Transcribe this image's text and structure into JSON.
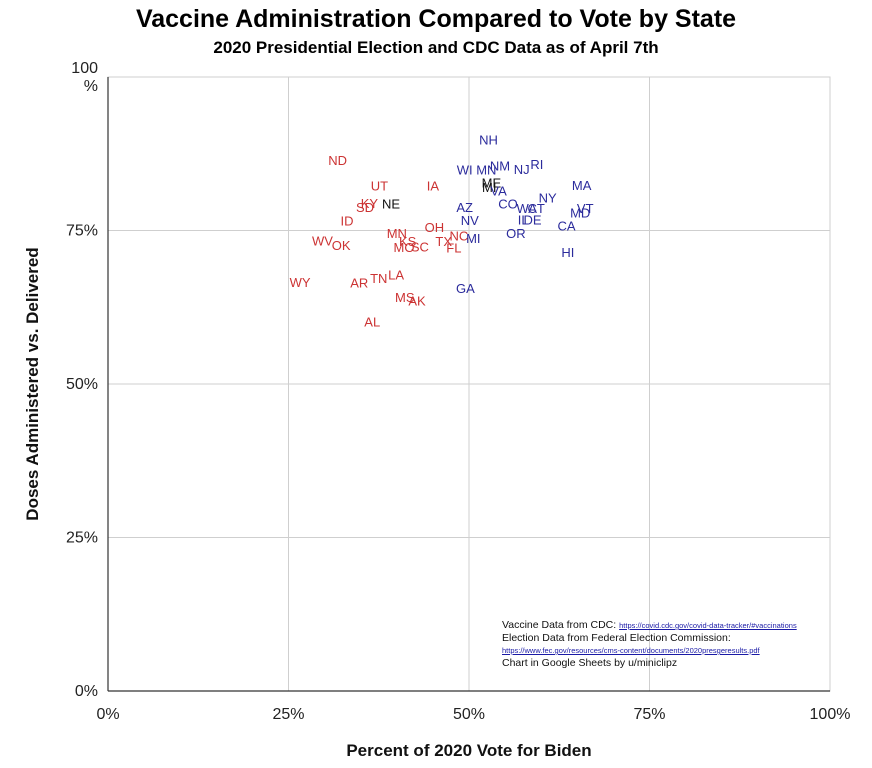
{
  "chart_data": {
    "type": "scatter",
    "title": "Vaccine Administration Compared to Vote by State",
    "subtitle": "2020 Presidential Election and CDC Data as of April 7th",
    "xlabel": "Percent of 2020 Vote for Biden",
    "ylabel": "Doses Administered vs. Delivered",
    "xlim": [
      0,
      100
    ],
    "ylim": [
      0,
      100
    ],
    "x_ticks": [
      "0%",
      "25%",
      "50%",
      "75%",
      "100%"
    ],
    "y_ticks": [
      "0%",
      "25%",
      "50%",
      "75%",
      "100\n%"
    ],
    "grid": true,
    "colors": {
      "republican": "#cc3333",
      "democrat": "#2b2b9c",
      "neutral": "#111111"
    },
    "points": [
      {
        "label": "ND",
        "x": 31.8,
        "y": 86.5,
        "party": "R"
      },
      {
        "label": "UT",
        "x": 37.6,
        "y": 82.3,
        "party": "R"
      },
      {
        "label": "IA",
        "x": 45.0,
        "y": 82.3,
        "party": "R"
      },
      {
        "label": "NE",
        "x": 39.2,
        "y": 79.4,
        "party": "N"
      },
      {
        "label": "KY",
        "x": 36.2,
        "y": 79.5,
        "party": "R"
      },
      {
        "label": "SD",
        "x": 35.6,
        "y": 78.8,
        "party": "R"
      },
      {
        "label": "ID",
        "x": 33.1,
        "y": 76.6,
        "party": "R"
      },
      {
        "label": "MN",
        "x": 40.0,
        "y": 74.6,
        "party": "R"
      },
      {
        "label": "OH",
        "x": 45.2,
        "y": 75.6,
        "party": "R"
      },
      {
        "label": "TX",
        "x": 46.5,
        "y": 73.3,
        "party": "R"
      },
      {
        "label": "NC",
        "x": 48.6,
        "y": 74.2,
        "party": "R"
      },
      {
        "label": "KS",
        "x": 41.5,
        "y": 73.3,
        "party": "R"
      },
      {
        "label": "MO",
        "x": 41.0,
        "y": 72.3,
        "party": "R"
      },
      {
        "label": "SC",
        "x": 43.2,
        "y": 72.4,
        "party": "R"
      },
      {
        "label": "FL",
        "x": 47.9,
        "y": 72.2,
        "party": "R"
      },
      {
        "label": "WV",
        "x": 29.7,
        "y": 73.4,
        "party": "R"
      },
      {
        "label": "OK",
        "x": 32.3,
        "y": 72.6,
        "party": "R"
      },
      {
        "label": "LA",
        "x": 39.9,
        "y": 67.8,
        "party": "R"
      },
      {
        "label": "TN",
        "x": 37.5,
        "y": 67.3,
        "party": "R"
      },
      {
        "label": "AR",
        "x": 34.8,
        "y": 66.5,
        "party": "R"
      },
      {
        "label": "WY",
        "x": 26.6,
        "y": 66.6,
        "party": "R"
      },
      {
        "label": "MS",
        "x": 41.1,
        "y": 64.2,
        "party": "R"
      },
      {
        "label": "AK",
        "x": 42.8,
        "y": 63.6,
        "party": "R"
      },
      {
        "label": "AL",
        "x": 36.6,
        "y": 60.2,
        "party": "R"
      },
      {
        "label": "NH",
        "x": 52.7,
        "y": 89.8,
        "party": "D"
      },
      {
        "label": "WI",
        "x": 49.4,
        "y": 84.9,
        "party": "D"
      },
      {
        "label": "MN",
        "x": 52.4,
        "y": 84.9,
        "party": "D"
      },
      {
        "label": "NM",
        "x": 54.3,
        "y": 85.6,
        "party": "D"
      },
      {
        "label": "NJ",
        "x": 57.3,
        "y": 85.0,
        "party": "D"
      },
      {
        "label": "RI",
        "x": 59.4,
        "y": 85.8,
        "party": "D"
      },
      {
        "label": "ME",
        "x": 53.1,
        "y": 82.8,
        "party": "N"
      },
      {
        "label": "MI",
        "x": 52.8,
        "y": 82.1,
        "party": "N"
      },
      {
        "label": "VA",
        "x": 54.1,
        "y": 81.5,
        "party": "D"
      },
      {
        "label": "MA",
        "x": 65.6,
        "y": 82.4,
        "party": "D"
      },
      {
        "label": "NY",
        "x": 60.9,
        "y": 80.4,
        "party": "D"
      },
      {
        "label": "AZ",
        "x": 49.4,
        "y": 78.8,
        "party": "D"
      },
      {
        "label": "CO",
        "x": 55.4,
        "y": 79.4,
        "party": "D"
      },
      {
        "label": "WA",
        "x": 58.0,
        "y": 78.7,
        "party": "D"
      },
      {
        "label": "CT",
        "x": 59.3,
        "y": 78.7,
        "party": "D"
      },
      {
        "label": "VT",
        "x": 66.1,
        "y": 78.7,
        "party": "D"
      },
      {
        "label": "MD",
        "x": 65.4,
        "y": 77.9,
        "party": "D"
      },
      {
        "label": "NV",
        "x": 50.1,
        "y": 76.7,
        "party": "D"
      },
      {
        "label": "IL",
        "x": 57.5,
        "y": 76.8,
        "party": "D"
      },
      {
        "label": "DE",
        "x": 58.8,
        "y": 76.8,
        "party": "D"
      },
      {
        "label": "CA",
        "x": 63.5,
        "y": 75.8,
        "party": "D"
      },
      {
        "label": "OR",
        "x": 56.5,
        "y": 74.6,
        "party": "D"
      },
      {
        "label": "MI",
        "x": 50.6,
        "y": 73.8,
        "party": "D"
      },
      {
        "label": "HI",
        "x": 63.7,
        "y": 71.5,
        "party": "D"
      },
      {
        "label": "GA",
        "x": 49.5,
        "y": 65.6,
        "party": "D"
      }
    ]
  },
  "sources": {
    "cdc_label": "Vaccine Data from CDC:",
    "cdc_url": "https://covid.cdc.gov/covid-data-tracker/#vaccinations",
    "fec_label": "Election Data from Federal Election Commission:",
    "fec_url": "https://www.fec.gov/resources/cms-content/documents/2020presgeresults.pdf",
    "credit": "Chart in Google Sheets by u/miniclipz"
  }
}
